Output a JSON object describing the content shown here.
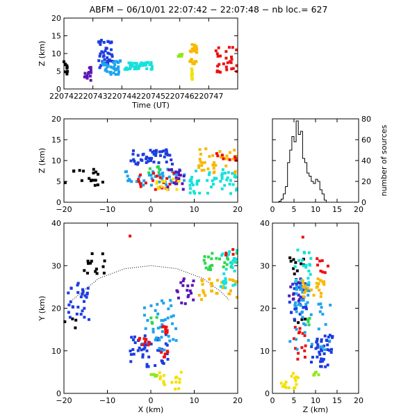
{
  "chart_data": {
    "type": "scatter",
    "title": "ABFM − 06/10/01 22:07:42 − 22:07:48 − nb loc.=     627",
    "colors": {
      "black": "#000000",
      "purple": "#5a16b4",
      "blue": "#1c3ce0",
      "lightblue": "#1ea4ee",
      "cyan": "#14e2dc",
      "green": "#2ad84a",
      "yellowgreen": "#90e81c",
      "orange": "#f8b800",
      "yellow": "#f4e000",
      "red": "#ee1010"
    },
    "panels": [
      {
        "id": "time-height",
        "xlabel": "Time (UT)",
        "ylabel": "Z (km)",
        "xlim": [
          220742,
          220748
        ],
        "ylim": [
          0,
          20
        ],
        "xticks": [
          220742,
          220743,
          220744,
          220745,
          220746,
          220747
        ],
        "xtick_labels": [
          "220742",
          "220743",
          "220744",
          "220745",
          "220746",
          "220747"
        ],
        "yticks": [
          0,
          5,
          10,
          15,
          20
        ],
        "ytick_labels": [
          "0",
          "5",
          "10",
          "15",
          "20"
        ],
        "clusters": [
          {
            "color": "black",
            "x": [
              220742.0,
              220742.15
            ],
            "y": [
              4,
              8
            ],
            "n": 10
          },
          {
            "color": "purple",
            "x": [
              220742.7,
              220742.95
            ],
            "y": [
              2.2,
              6.5
            ],
            "n": 16
          },
          {
            "color": "blue",
            "x": [
              220743.2,
              220743.7
            ],
            "y": [
              6,
              14
            ],
            "n": 40
          },
          {
            "color": "lightblue",
            "x": [
              220743.3,
              220743.95
            ],
            "y": [
              4,
              8
            ],
            "n": 35
          },
          {
            "color": "cyan",
            "x": [
              220744.1,
              220745.05
            ],
            "y": [
              5.5,
              7.5
            ],
            "n": 45
          },
          {
            "color": "yellowgreen",
            "x": [
              220745.85,
              220746.1
            ],
            "y": [
              9,
              10
            ],
            "n": 8
          },
          {
            "color": "orange",
            "x": [
              220746.35,
              220746.6
            ],
            "y": [
              7,
              13
            ],
            "n": 22
          },
          {
            "color": "yellow",
            "x": [
              220746.3,
              220746.45
            ],
            "y": [
              2.5,
              6
            ],
            "n": 10
          },
          {
            "color": "red",
            "x": [
              220747.25,
              220748.0
            ],
            "y": [
              4.5,
              12
            ],
            "n": 28
          }
        ]
      },
      {
        "id": "xz",
        "xlabel": "",
        "ylabel": "Z (km)",
        "xlim": [
          -20,
          20
        ],
        "ylim": [
          0,
          20
        ],
        "xticks": [
          -20,
          -10,
          0,
          10,
          20
        ],
        "xtick_labels": [
          "−20",
          "−10",
          "0",
          "10",
          "20"
        ],
        "yticks": [
          0,
          5,
          10,
          15,
          20
        ],
        "ytick_labels": [
          "0",
          "5",
          "10",
          "15",
          "20"
        ],
        "clusters": [
          {
            "color": "black",
            "x": [
              -20,
              -11
            ],
            "y": [
              4,
              8
            ],
            "n": 18
          },
          {
            "color": "blue",
            "x": [
              -5,
              5
            ],
            "y": [
              9,
              13
            ],
            "n": 45
          },
          {
            "color": "lightblue",
            "x": [
              -6,
              8
            ],
            "y": [
              4,
              8
            ],
            "n": 40
          },
          {
            "color": "green",
            "x": [
              -1,
              2
            ],
            "y": [
              7,
              9
            ],
            "n": 6
          },
          {
            "color": "red",
            "x": [
              -4,
              6
            ],
            "y": [
              3,
              7
            ],
            "n": 20
          },
          {
            "color": "yellow",
            "x": [
              1,
              7
            ],
            "y": [
              3,
              6
            ],
            "n": 14
          },
          {
            "color": "purple",
            "x": [
              3,
              8
            ],
            "y": [
              2,
              8
            ],
            "n": 16
          },
          {
            "color": "orange",
            "x": [
              11,
              20
            ],
            "y": [
              7,
              13
            ],
            "n": 35
          },
          {
            "color": "cyan",
            "x": [
              9,
              20
            ],
            "y": [
              2,
              8
            ],
            "n": 50
          },
          {
            "color": "red",
            "x": [
              15,
              20
            ],
            "y": [
              10,
              12
            ],
            "n": 8
          }
        ]
      },
      {
        "id": "histogram",
        "type": "histogram",
        "xlabel": "",
        "ylabel": "number of sources",
        "xlim": [
          0,
          20
        ],
        "ylim": [
          0,
          80
        ],
        "xticks": [
          0,
          5,
          10,
          15,
          20
        ],
        "xtick_labels": [
          "0",
          "5",
          "10",
          "15",
          "20"
        ],
        "yticks": [
          0,
          20,
          40,
          60,
          80
        ],
        "ytick_labels": [
          "0",
          "20",
          "40",
          "60",
          "80"
        ],
        "bin_width": 0.5,
        "bin_start": 1.5,
        "counts": [
          1,
          3,
          8,
          15,
          38,
          50,
          63,
          58,
          78,
          65,
          68,
          42,
          38,
          28,
          25,
          20,
          18,
          22,
          20,
          12,
          8,
          2
        ]
      },
      {
        "id": "xy",
        "xlabel": "X (km)",
        "ylabel": "Y (km)",
        "xlim": [
          -20,
          20
        ],
        "ylim": [
          0,
          40
        ],
        "xticks": [
          -20,
          -10,
          0,
          10,
          20
        ],
        "xtick_labels": [
          "−20",
          "−10",
          "0",
          "10",
          "20"
        ],
        "yticks": [
          0,
          10,
          20,
          30,
          40
        ],
        "ytick_labels": [
          "0",
          "10",
          "20",
          "30",
          "40"
        ],
        "arc": {
          "x": [
            -18,
            -12,
            -6,
            0,
            6,
            12,
            16,
            18
          ],
          "y": [
            22,
            27,
            29.3,
            30,
            29.3,
            27,
            24,
            22
          ]
        },
        "clusters": [
          {
            "color": "black",
            "x": [
              -16,
              -10
            ],
            "y": [
              28,
              33
            ],
            "n": 14
          },
          {
            "color": "black",
            "x": [
              -20,
              -17
            ],
            "y": [
              15,
              18
            ],
            "n": 4
          },
          {
            "color": "blue",
            "x": [
              -19,
              -14
            ],
            "y": [
              17,
              26
            ],
            "n": 30
          },
          {
            "color": "red",
            "x": [
              -5,
              -4
            ],
            "y": [
              36,
              37
            ],
            "n": 1
          },
          {
            "color": "purple",
            "x": [
              6,
              10
            ],
            "y": [
              21,
              27
            ],
            "n": 18
          },
          {
            "color": "blue",
            "x": [
              -5,
              4
            ],
            "y": [
              6,
              14
            ],
            "n": 45
          },
          {
            "color": "lightblue",
            "x": [
              -2,
              6
            ],
            "y": [
              10,
              22
            ],
            "n": 40
          },
          {
            "color": "red",
            "x": [
              -3,
              0
            ],
            "y": [
              11,
              13
            ],
            "n": 8
          },
          {
            "color": "red",
            "x": [
              2,
              4
            ],
            "y": [
              14,
              16
            ],
            "n": 8
          },
          {
            "color": "red",
            "x": [
              2,
              4
            ],
            "y": [
              8,
              10
            ],
            "n": 6
          },
          {
            "color": "green",
            "x": [
              0,
              2
            ],
            "y": [
              16,
              18
            ],
            "n": 4
          },
          {
            "color": "yellowgreen",
            "x": [
              0,
              2
            ],
            "y": [
              4,
              5
            ],
            "n": 6
          },
          {
            "color": "yellow",
            "x": [
              2,
              7
            ],
            "y": [
              1,
              5
            ],
            "n": 16
          },
          {
            "color": "orange",
            "x": [
              11,
              20
            ],
            "y": [
              22,
              27
            ],
            "n": 30
          },
          {
            "color": "green",
            "x": [
              12,
              20
            ],
            "y": [
              29,
              33
            ],
            "n": 25
          },
          {
            "color": "cyan",
            "x": [
              16,
              20
            ],
            "y": [
              24,
              34
            ],
            "n": 28
          },
          {
            "color": "red",
            "x": [
              17,
              19
            ],
            "y": [
              32,
              34
            ],
            "n": 4
          }
        ]
      },
      {
        "id": "zy",
        "xlabel": "Z (km)",
        "ylabel": "",
        "xlim": [
          0,
          20
        ],
        "ylim": [
          0,
          40
        ],
        "xticks": [
          0,
          5,
          10,
          15,
          20
        ],
        "xtick_labels": [
          "0",
          "5",
          "10",
          "15",
          "20"
        ],
        "yticks": [
          0,
          10,
          20,
          30,
          40
        ],
        "ytick_labels": [
          "0",
          "10",
          "20",
          "30",
          "40"
        ],
        "clusters": [
          {
            "color": "black",
            "x": [
              4,
              8
            ],
            "y": [
              28,
              33
            ],
            "n": 10
          },
          {
            "color": "black",
            "x": [
              4,
              8
            ],
            "y": [
              15,
              18
            ],
            "n": 4
          },
          {
            "color": "red",
            "x": [
              7,
              8
            ],
            "y": [
              36,
              37
            ],
            "n": 1
          },
          {
            "color": "blue",
            "x": [
              4,
              8
            ],
            "y": [
              17,
              26
            ],
            "n": 25
          },
          {
            "color": "purple",
            "x": [
              3,
              8
            ],
            "y": [
              21,
              27
            ],
            "n": 16
          },
          {
            "color": "lightblue",
            "x": [
              5,
              9
            ],
            "y": [
              20,
              26
            ],
            "n": 20
          },
          {
            "color": "cyan",
            "x": [
              5,
              9
            ],
            "y": [
              26,
              34
            ],
            "n": 20
          },
          {
            "color": "orange",
            "x": [
              7,
              12
            ],
            "y": [
              22,
              27
            ],
            "n": 25
          },
          {
            "color": "red",
            "x": [
              10,
              13
            ],
            "y": [
              28,
              33
            ],
            "n": 8
          },
          {
            "color": "red",
            "x": [
              5,
              8
            ],
            "y": [
              8,
              16
            ],
            "n": 14
          },
          {
            "color": "blue",
            "x": [
              9,
              14
            ],
            "y": [
              6,
              14
            ],
            "n": 40
          },
          {
            "color": "lightblue",
            "x": [
              4,
              14
            ],
            "y": [
              10,
              22
            ],
            "n": 30
          },
          {
            "color": "green",
            "x": [
              8,
              9
            ],
            "y": [
              16,
              18
            ],
            "n": 4
          },
          {
            "color": "yellowgreen",
            "x": [
              9,
              11
            ],
            "y": [
              4,
              5
            ],
            "n": 6
          },
          {
            "color": "yellow",
            "x": [
              2,
              6
            ],
            "y": [
              1,
              5
            ],
            "n": 16
          }
        ]
      }
    ]
  }
}
